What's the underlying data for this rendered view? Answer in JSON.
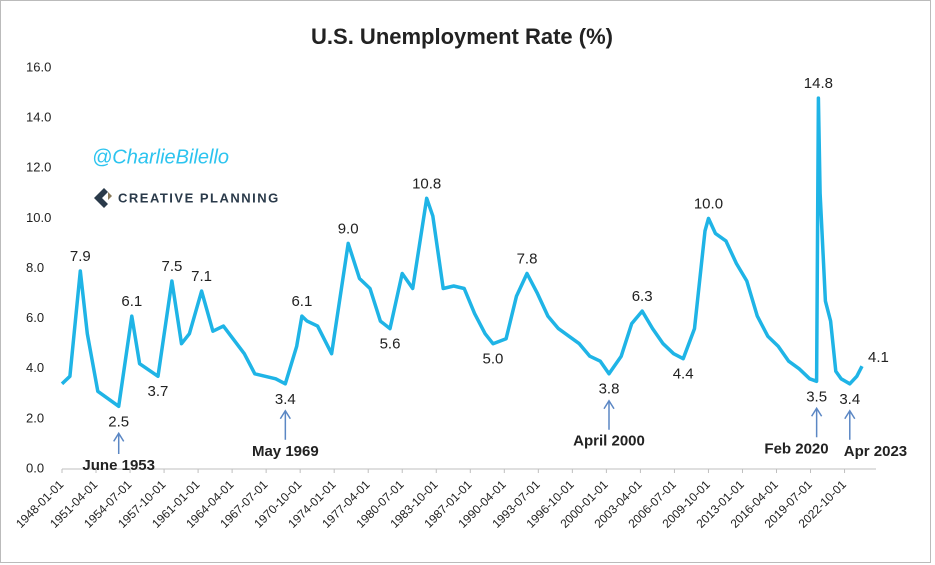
{
  "chart_data": {
    "type": "line",
    "title": "U.S. Unemployment Rate (%)",
    "watermark": {
      "handle": "@CharlieBilello",
      "brand": "CREATIVE PLANNING"
    },
    "x": [
      "1948-01-01",
      "1948-10-01",
      "1949-10-01",
      "1950-06-01",
      "1951-06-01",
      "1953-06-01",
      "1954-09-01",
      "1955-06-01",
      "1957-03-01",
      "1958-07-01",
      "1959-06-01",
      "1960-03-01",
      "1961-05-01",
      "1962-06-01",
      "1963-06-01",
      "1965-06-01",
      "1966-06-01",
      "1968-06-01",
      "1969-05-01",
      "1970-06-01",
      "1970-12-01",
      "1971-06-01",
      "1972-06-01",
      "1973-10-01",
      "1975-05-01",
      "1976-06-01",
      "1977-06-01",
      "1978-06-01",
      "1979-05-01",
      "1980-07-01",
      "1981-07-01",
      "1982-11-01",
      "1983-06-01",
      "1984-06-01",
      "1985-06-01",
      "1986-06-01",
      "1987-06-01",
      "1988-06-01",
      "1989-03-01",
      "1990-06-01",
      "1991-06-01",
      "1992-06-01",
      "1993-06-01",
      "1994-06-01",
      "1995-06-01",
      "1996-06-01",
      "1997-06-01",
      "1998-06-01",
      "1999-06-01",
      "2000-04-01",
      "2001-06-01",
      "2002-06-01",
      "2003-06-01",
      "2004-06-01",
      "2005-06-01",
      "2006-06-01",
      "2007-05-01",
      "2008-06-01",
      "2009-06-01",
      "2009-10-01",
      "2010-06-01",
      "2011-06-01",
      "2012-06-01",
      "2013-06-01",
      "2014-06-01",
      "2015-06-01",
      "2016-06-01",
      "2017-06-01",
      "2018-06-01",
      "2019-06-01",
      "2020-02-01",
      "2020-04-01",
      "2020-06-01",
      "2020-12-01",
      "2021-06-01",
      "2021-12-01",
      "2022-06-01",
      "2023-04-01",
      "2023-12-01",
      "2024-06-01"
    ],
    "series": [
      {
        "name": "Unemployment Rate",
        "color": "#1fb4e6",
        "values": [
          3.4,
          3.7,
          7.9,
          5.4,
          3.1,
          2.5,
          6.1,
          4.2,
          3.7,
          7.5,
          5.0,
          5.4,
          7.1,
          5.5,
          5.7,
          4.6,
          3.8,
          3.6,
          3.4,
          4.9,
          6.1,
          5.9,
          5.7,
          4.6,
          9.0,
          7.6,
          7.2,
          5.9,
          5.6,
          7.8,
          7.2,
          10.8,
          10.1,
          7.2,
          7.3,
          7.2,
          6.2,
          5.4,
          5.0,
          5.2,
          6.9,
          7.8,
          7.0,
          6.1,
          5.6,
          5.3,
          5.0,
          4.5,
          4.3,
          3.8,
          4.5,
          5.8,
          6.3,
          5.6,
          5.0,
          4.6,
          4.4,
          5.6,
          9.5,
          10.0,
          9.4,
          9.1,
          8.2,
          7.5,
          6.1,
          5.3,
          4.9,
          4.3,
          4.0,
          3.6,
          3.5,
          14.8,
          11.0,
          6.7,
          5.9,
          3.9,
          3.6,
          3.4,
          3.7,
          4.1
        ],
        "value_labels": [
          null,
          null,
          "7.9",
          null,
          null,
          "2.5",
          "6.1",
          null,
          "3.7",
          "7.5",
          null,
          null,
          "7.1",
          null,
          null,
          null,
          null,
          null,
          "3.4",
          null,
          "6.1",
          null,
          null,
          null,
          "9.0",
          null,
          null,
          null,
          "5.6",
          null,
          null,
          "10.8",
          null,
          null,
          null,
          null,
          null,
          null,
          "5.0",
          null,
          null,
          "7.8",
          null,
          null,
          null,
          null,
          null,
          null,
          null,
          "3.8",
          null,
          null,
          "6.3",
          null,
          null,
          null,
          "4.4",
          null,
          null,
          "10.0",
          null,
          null,
          null,
          null,
          null,
          null,
          null,
          null,
          null,
          null,
          "3.5",
          "14.8",
          null,
          null,
          null,
          null,
          null,
          "3.4",
          null,
          "4.1"
        ]
      }
    ],
    "annotations": [
      {
        "text": "June 1953",
        "x": "1953-06-01"
      },
      {
        "text": "May 1969",
        "x": "1969-05-01"
      },
      {
        "text": "April 2000",
        "x": "2000-04-01"
      },
      {
        "text": "Feb 2020",
        "x": "2020-02-01"
      },
      {
        "text": "Apr 2023",
        "x": "2023-04-01"
      }
    ],
    "xlim": [
      "1948-01-01",
      "2024-06-01"
    ],
    "xticks": [
      "1948-01-01",
      "1951-04-01",
      "1954-07-01",
      "1957-10-01",
      "1961-01-01",
      "1964-04-01",
      "1967-07-01",
      "1970-10-01",
      "1974-01-01",
      "1977-04-01",
      "1980-07-01",
      "1983-10-01",
      "1987-01-01",
      "1990-04-01",
      "1993-07-01",
      "1996-10-01",
      "2000-01-01",
      "2003-04-01",
      "2006-07-01",
      "2009-10-01",
      "2013-01-01",
      "2016-04-01",
      "2019-07-01",
      "2022-10-01"
    ],
    "ylim": [
      0,
      16
    ],
    "yticks": [
      {
        "value": 0,
        "label": "0.0"
      },
      {
        "value": 2,
        "label": "2.0"
      },
      {
        "value": 4,
        "label": "4.0"
      },
      {
        "value": 6,
        "label": "6.0"
      },
      {
        "value": 8,
        "label": "8.0"
      },
      {
        "value": 10,
        "label": "10.0"
      },
      {
        "value": 12,
        "label": "12.0"
      },
      {
        "value": 14,
        "label": "14.0"
      },
      {
        "value": 16,
        "label": "16.0"
      }
    ],
    "grid": false
  }
}
